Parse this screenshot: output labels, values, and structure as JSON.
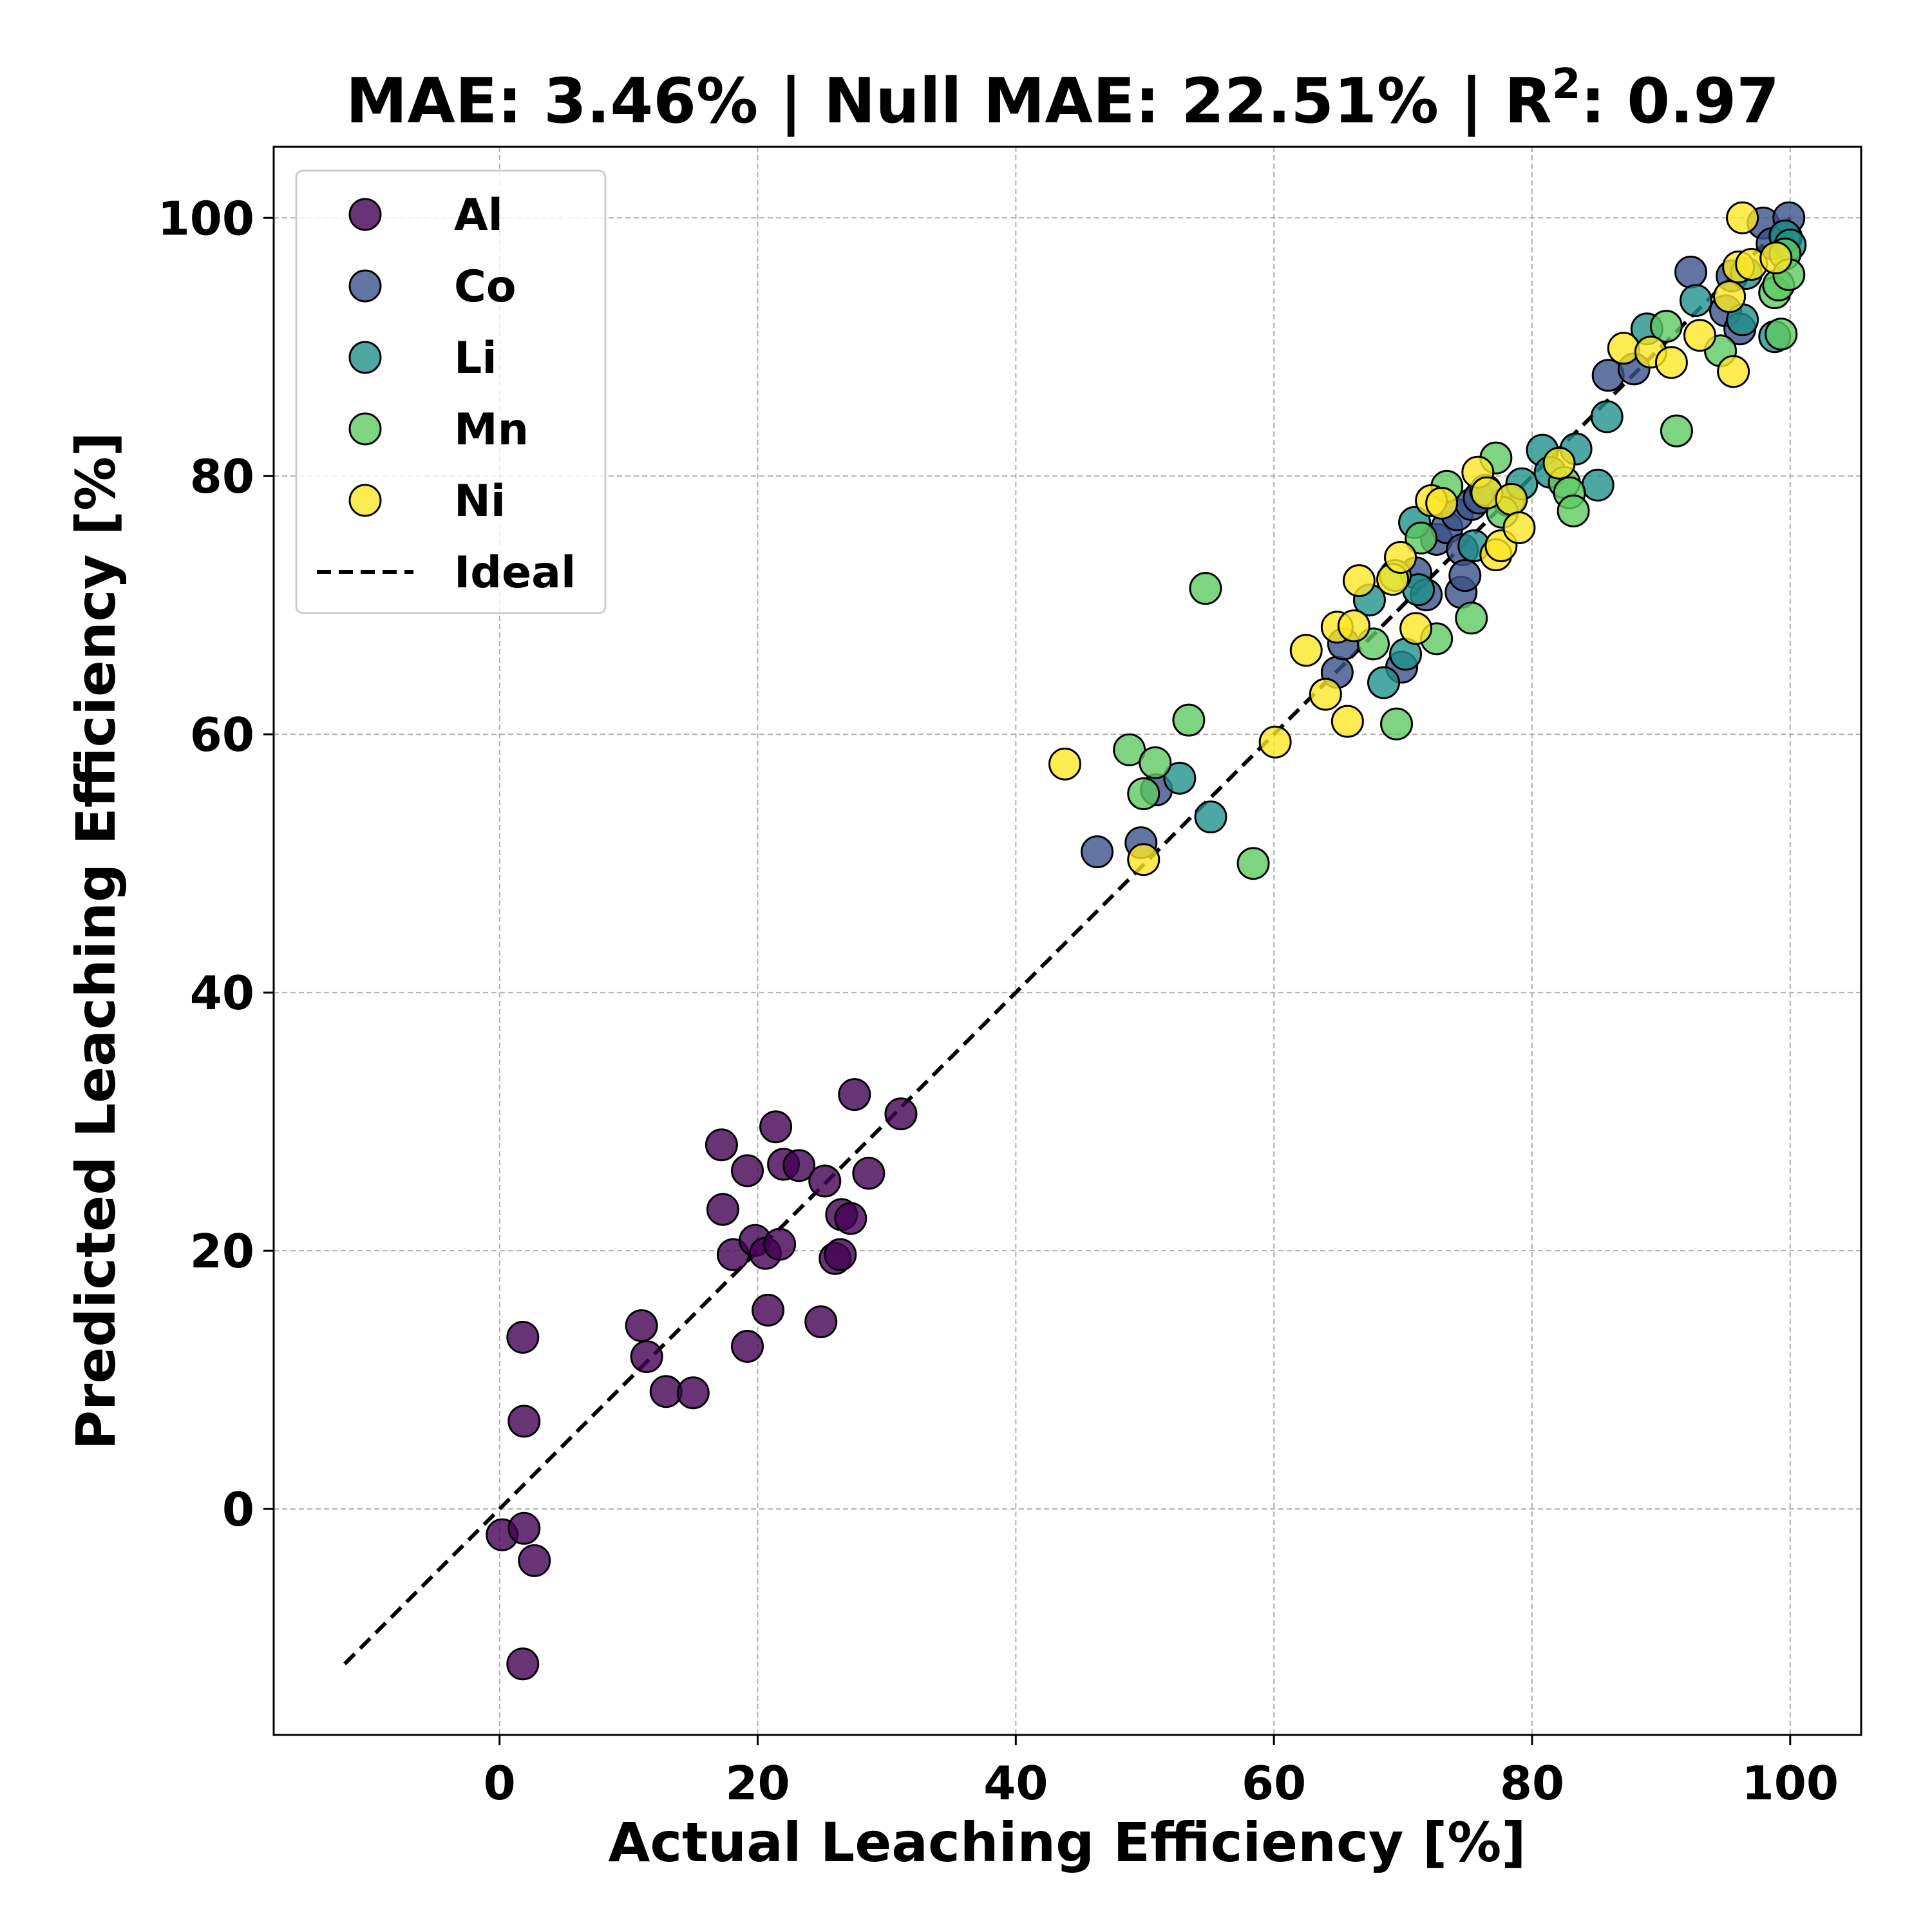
{
  "chart_data": {
    "type": "scatter",
    "title_parts": {
      "lead": "MAE: 3.46% | Null MAE: 22.51% | R",
      "sup": "2",
      "tail": ": 0.97"
    },
    "xlabel": "Actual Leaching Efficiency [%]",
    "ylabel": "Predicted Leaching Efficiency [%]",
    "xlim": [
      -17.5,
      105.5
    ],
    "ylim": [
      -17.5,
      105.5
    ],
    "xticks": [
      0,
      20,
      40,
      60,
      80,
      100
    ],
    "yticks": [
      0,
      20,
      40,
      60,
      80,
      100
    ],
    "grid": true,
    "legend_position": "upper-left",
    "ideal_line": {
      "name": "Ideal",
      "from": [
        -12,
        -12
      ],
      "to": [
        100,
        100
      ],
      "color": "#000000"
    },
    "series": [
      {
        "name": "Al",
        "color": "#440154",
        "points": [
          [
            1.8,
            13.3
          ],
          [
            1.9,
            6.8
          ],
          [
            0.2,
            -2.0
          ],
          [
            1.9,
            -1.5
          ],
          [
            2.7,
            -4.0
          ],
          [
            1.8,
            -12.0
          ],
          [
            11.0,
            14.2
          ],
          [
            11.4,
            11.8
          ],
          [
            12.9,
            9.1
          ],
          [
            15.0,
            9.0
          ],
          [
            17.2,
            28.2
          ],
          [
            17.3,
            23.2
          ],
          [
            18.1,
            19.7
          ],
          [
            19.2,
            26.2
          ],
          [
            19.2,
            12.6
          ],
          [
            19.8,
            20.8
          ],
          [
            20.6,
            19.8
          ],
          [
            20.8,
            15.4
          ],
          [
            21.4,
            29.6
          ],
          [
            21.7,
            20.5
          ],
          [
            22.0,
            26.7
          ],
          [
            23.2,
            26.6
          ],
          [
            24.9,
            14.5
          ],
          [
            25.2,
            25.4
          ],
          [
            26.0,
            19.4
          ],
          [
            26.4,
            19.7
          ],
          [
            26.5,
            22.8
          ],
          [
            27.2,
            22.5
          ],
          [
            27.5,
            32.1
          ],
          [
            28.6,
            26.0
          ],
          [
            31.1,
            30.6
          ]
        ]
      },
      {
        "name": "Co",
        "color": "#3b528b",
        "points": [
          [
            46.3,
            50.9
          ],
          [
            49.7,
            51.6
          ],
          [
            50.9,
            55.7
          ],
          [
            64.9,
            64.8
          ],
          [
            65.4,
            67.0
          ],
          [
            69.9,
            65.2
          ],
          [
            71.0,
            72.5
          ],
          [
            71.8,
            70.8
          ],
          [
            72.6,
            75.1
          ],
          [
            73.4,
            76.0
          ],
          [
            74.2,
            77.0
          ],
          [
            74.5,
            71.0
          ],
          [
            74.6,
            74.3
          ],
          [
            74.8,
            72.3
          ],
          [
            75.3,
            77.8
          ],
          [
            75.9,
            78.3
          ],
          [
            85.9,
            87.8
          ],
          [
            87.9,
            88.3
          ],
          [
            92.3,
            95.8
          ],
          [
            95.0,
            92.8
          ],
          [
            95.5,
            95.5
          ],
          [
            96.1,
            91.4
          ],
          [
            97.9,
            99.6
          ],
          [
            98.6,
            98.0
          ],
          [
            99.7,
            98.5
          ],
          [
            99.9,
            100.0
          ]
        ]
      },
      {
        "name": "Li",
        "color": "#21918c",
        "points": [
          [
            52.7,
            56.6
          ],
          [
            55.1,
            53.6
          ],
          [
            67.4,
            70.4
          ],
          [
            68.5,
            64.0
          ],
          [
            70.2,
            66.2
          ],
          [
            70.9,
            76.4
          ],
          [
            71.2,
            71.2
          ],
          [
            75.5,
            74.6
          ],
          [
            76.4,
            78.9
          ],
          [
            78.2,
            78.1
          ],
          [
            79.2,
            79.4
          ],
          [
            80.8,
            82.0
          ],
          [
            81.4,
            80.3
          ],
          [
            83.4,
            82.1
          ],
          [
            85.1,
            79.3
          ],
          [
            85.8,
            84.6
          ],
          [
            88.9,
            91.4
          ],
          [
            92.7,
            93.6
          ],
          [
            96.3,
            92.1
          ],
          [
            96.6,
            95.7
          ],
          [
            98.8,
            90.8
          ],
          [
            99.6,
            98.6
          ],
          [
            100.0,
            97.9
          ]
        ]
      },
      {
        "name": "Mn",
        "color": "#5ec962",
        "points": [
          [
            48.8,
            58.8
          ],
          [
            49.9,
            55.4
          ],
          [
            50.8,
            57.8
          ],
          [
            53.4,
            61.1
          ],
          [
            54.7,
            71.3
          ],
          [
            58.4,
            50.0
          ],
          [
            67.7,
            67.0
          ],
          [
            69.4,
            72.3
          ],
          [
            69.5,
            60.8
          ],
          [
            71.4,
            75.2
          ],
          [
            72.6,
            67.4
          ],
          [
            73.4,
            79.2
          ],
          [
            75.3,
            69.0
          ],
          [
            77.2,
            81.4
          ],
          [
            77.7,
            77.2
          ],
          [
            82.5,
            79.5
          ],
          [
            82.9,
            78.7
          ],
          [
            83.2,
            77.3
          ],
          [
            90.4,
            91.6
          ],
          [
            91.2,
            83.5
          ],
          [
            94.6,
            89.7
          ],
          [
            98.8,
            94.2
          ],
          [
            99.1,
            94.8
          ],
          [
            99.3,
            91.0
          ],
          [
            99.6,
            97.2
          ],
          [
            99.9,
            95.6
          ]
        ]
      },
      {
        "name": "Ni",
        "color": "#fde725",
        "points": [
          [
            43.8,
            57.7
          ],
          [
            49.9,
            50.3
          ],
          [
            60.1,
            59.4
          ],
          [
            62.5,
            66.5
          ],
          [
            64.0,
            63.1
          ],
          [
            64.9,
            68.3
          ],
          [
            65.7,
            61.0
          ],
          [
            66.2,
            68.4
          ],
          [
            66.6,
            71.9
          ],
          [
            69.2,
            72.0
          ],
          [
            69.8,
            73.7
          ],
          [
            71.0,
            68.2
          ],
          [
            72.2,
            78.1
          ],
          [
            73.0,
            77.9
          ],
          [
            75.8,
            80.3
          ],
          [
            76.5,
            78.7
          ],
          [
            77.2,
            73.9
          ],
          [
            77.6,
            74.6
          ],
          [
            78.4,
            78.2
          ],
          [
            79.0,
            76.0
          ],
          [
            82.1,
            81.0
          ],
          [
            87.1,
            89.9
          ],
          [
            89.2,
            89.6
          ],
          [
            90.8,
            88.8
          ],
          [
            93.0,
            90.9
          ],
          [
            95.3,
            93.9
          ],
          [
            95.6,
            88.1
          ],
          [
            96.0,
            96.2
          ],
          [
            96.3,
            100.0
          ],
          [
            97.0,
            96.4
          ],
          [
            98.9,
            96.9
          ]
        ]
      }
    ]
  }
}
